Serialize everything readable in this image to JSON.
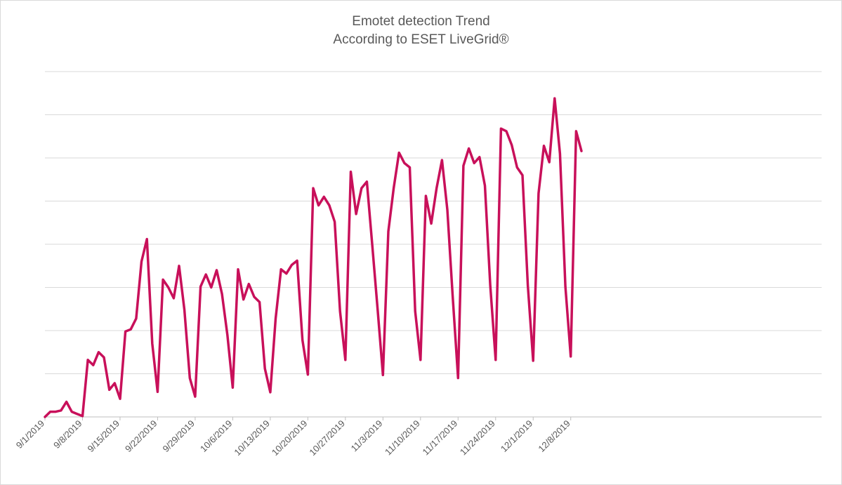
{
  "chart_data": {
    "type": "line",
    "title_lines": [
      "Emotet detection Trend",
      "According to ESET LiveGrid®"
    ],
    "xlabel": "",
    "ylabel": "",
    "y_tick_labels_shown": false,
    "y_gridlines": 8,
    "grid": true,
    "legend": "none",
    "line_color": "#c8105a",
    "x_tick_labels": [
      "9/1/2019",
      "9/8/2019",
      "9/15/2019",
      "9/22/2019",
      "9/29/2019",
      "10/6/2019",
      "10/13/2019",
      "10/20/2019",
      "10/27/2019",
      "11/3/2019",
      "11/10/2019",
      "11/17/2019",
      "11/24/2019",
      "12/1/2019",
      "12/8/2019"
    ],
    "x_start": "9/1/2019",
    "x_end": "12/12/2019",
    "ylim": [
      0,
      8
    ],
    "series": [
      {
        "values": [
          0.0,
          0.12,
          0.12,
          0.15,
          0.35,
          0.12,
          0.07,
          0.02,
          1.32,
          1.2,
          1.5,
          1.38,
          0.63,
          0.78,
          0.42,
          1.98,
          2.03,
          2.28,
          3.6,
          4.12,
          1.7,
          0.58,
          3.18,
          3.0,
          2.75,
          3.5,
          2.48,
          0.9,
          0.47,
          3.02,
          3.3,
          3.0,
          3.4,
          2.85,
          1.9,
          0.68,
          3.42,
          2.72,
          3.08,
          2.78,
          2.66,
          1.12,
          0.57,
          2.28,
          3.42,
          3.32,
          3.52,
          3.62,
          1.78,
          0.98,
          5.3,
          4.9,
          5.1,
          4.9,
          4.52,
          2.45,
          1.32,
          5.68,
          4.7,
          5.3,
          5.45,
          4.0,
          2.5,
          0.97,
          4.3,
          5.3,
          6.12,
          5.88,
          5.78,
          2.45,
          1.32,
          5.12,
          4.48,
          5.3,
          5.95,
          4.8,
          2.8,
          0.9,
          5.82,
          6.22,
          5.88,
          6.02,
          5.36,
          3.05,
          1.32,
          6.68,
          6.62,
          6.3,
          5.78,
          5.6,
          3.05,
          1.3,
          5.18,
          6.28,
          5.9,
          7.38,
          6.1,
          3.02,
          1.4,
          6.62,
          6.16
        ]
      }
    ]
  }
}
